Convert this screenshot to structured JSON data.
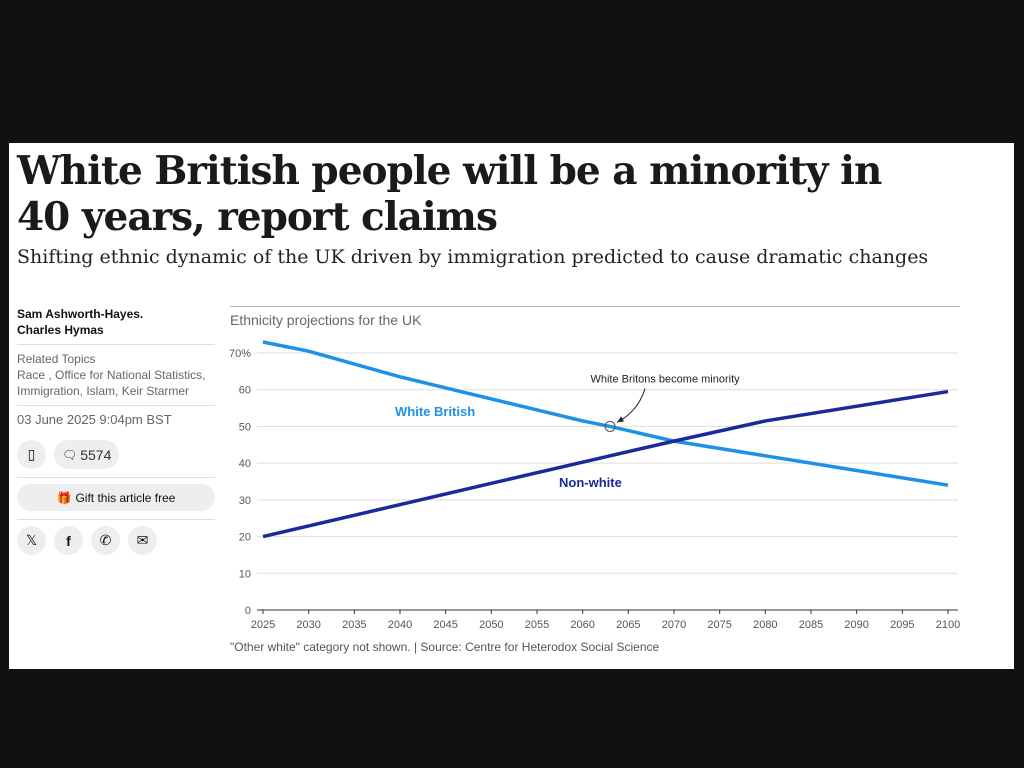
{
  "article": {
    "headline": "White British people will be a minority in 40 years, report claims",
    "standfirst": "Shifting ethnic dynamic of the UK driven by immigration predicted to cause dramatic changes",
    "authors": [
      "Sam Ashworth-Hayes.",
      "Charles Hymas"
    ],
    "related_label": "Related Topics",
    "related_topics": "Race , Office for National Statistics, Immigration, Islam, Keir Starmer",
    "date": "03 June 2025 9:04pm BST",
    "comment_count": "5574",
    "gift_label": "Gift this article free",
    "share_icons": [
      "x-icon",
      "facebook-icon",
      "whatsapp-icon",
      "email-icon"
    ]
  },
  "chart_data": {
    "type": "line",
    "title": "Ethnicity projections for the UK",
    "source": "\"Other white\" category not shown. | Source: Centre for Heterodox Social Science",
    "x_ticks": [
      2025,
      2030,
      2035,
      2040,
      2045,
      2050,
      2055,
      2060,
      2065,
      2070,
      2075,
      2080,
      2085,
      2090,
      2095,
      2100
    ],
    "y_ticks": [
      "0",
      "10",
      "20",
      "30",
      "40",
      "50",
      "60",
      "70%"
    ],
    "xlim": [
      2025,
      2100
    ],
    "ylim": [
      0,
      70
    ],
    "grid": true,
    "series": [
      {
        "name": "White British",
        "color": "#1e90e6",
        "x": [
          2025,
          2030,
          2040,
          2050,
          2060,
          2063,
          2070,
          2080,
          2090,
          2100
        ],
        "y": [
          73,
          70.5,
          63.5,
          57.5,
          51.5,
          50,
          46,
          42,
          38,
          34
        ]
      },
      {
        "name": "Non-white",
        "color": "#1a2a9a",
        "x": [
          2025,
          2050,
          2063,
          2070,
          2080,
          2100
        ],
        "y": [
          20,
          34.5,
          42,
          46,
          51.5,
          59.5
        ]
      }
    ],
    "annotation": {
      "text": "White Britons become minority",
      "x": 2063,
      "y": 50
    }
  }
}
